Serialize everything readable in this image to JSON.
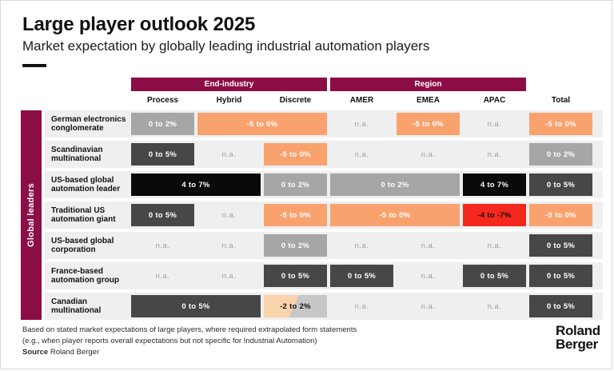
{
  "header": {
    "title": "Large player outlook 2025",
    "subtitle": "Market expectation by globally leading industrial automation players"
  },
  "table": {
    "sidebar_label": "Global leaders",
    "na_text": "n.a.",
    "group_headers": [
      {
        "label": "End-industry",
        "start": 1,
        "span": 3
      },
      {
        "label": "Region",
        "start": 4,
        "span": 3
      }
    ],
    "columns": [
      "Process",
      "Hybrid",
      "Discrete",
      "AMER",
      "EMEA",
      "APAC",
      "Total"
    ],
    "rows": [
      {
        "label": "German electronics conglomerate",
        "cells": [
          {
            "value": "0 to 2%",
            "style": "gray",
            "span": 1
          },
          {
            "value": "-5 to 0%",
            "style": "orange",
            "span": 2
          },
          {
            "value": "n.a.",
            "style": "na",
            "span": 1
          },
          {
            "value": "-5 to 0%",
            "style": "orange",
            "span": 1
          },
          {
            "value": "n.a.",
            "style": "na",
            "span": 1
          },
          {
            "value": "-5 to 0%",
            "style": "orange",
            "span": 1
          }
        ]
      },
      {
        "label": "Scandinavian multinational",
        "cells": [
          {
            "value": "0 to 5%",
            "style": "darkgray",
            "span": 1
          },
          {
            "value": "n.a.",
            "style": "na",
            "span": 1
          },
          {
            "value": "-5 to 0%",
            "style": "orange",
            "span": 1
          },
          {
            "value": "n.a.",
            "style": "na",
            "span": 1
          },
          {
            "value": "n.a.",
            "style": "na",
            "span": 1
          },
          {
            "value": "n.a.",
            "style": "na",
            "span": 1
          },
          {
            "value": "0 to 2%",
            "style": "gray",
            "span": 1
          }
        ]
      },
      {
        "label": "US-based global automation leader",
        "cells": [
          {
            "value": "4 to 7%",
            "style": "black",
            "span": 2
          },
          {
            "value": "0 to 2%",
            "style": "gray",
            "span": 1
          },
          {
            "value": "0 to 2%",
            "style": "gray",
            "span": 2
          },
          {
            "value": "4 to 7%",
            "style": "black",
            "span": 1
          },
          {
            "value": "0 to 5%",
            "style": "darkgray",
            "span": 1
          }
        ]
      },
      {
        "label": "Traditional US automation giant",
        "cells": [
          {
            "value": "0 to 5%",
            "style": "darkgray",
            "span": 1
          },
          {
            "value": "n.a.",
            "style": "na",
            "span": 1
          },
          {
            "value": "-5 to 0%",
            "style": "orange",
            "span": 1
          },
          {
            "value": "-5 to 0%",
            "style": "orange",
            "span": 2
          },
          {
            "value": "-4 to -7%",
            "style": "red",
            "span": 1
          },
          {
            "value": "-5 to 0%",
            "style": "orange",
            "span": 1
          }
        ]
      },
      {
        "label": "US-based global corporation",
        "cells": [
          {
            "value": "n.a.",
            "style": "na",
            "span": 1
          },
          {
            "value": "n.a.",
            "style": "na",
            "span": 1
          },
          {
            "value": "0 to 2%",
            "style": "gray",
            "span": 1
          },
          {
            "value": "n.a.",
            "style": "na",
            "span": 1
          },
          {
            "value": "n.a.",
            "style": "na",
            "span": 1
          },
          {
            "value": "n.a.",
            "style": "na",
            "span": 1
          },
          {
            "value": "0 to 5%",
            "style": "darkgray",
            "span": 1
          }
        ]
      },
      {
        "label": "France-based automation group",
        "cells": [
          {
            "value": "n.a.",
            "style": "na",
            "span": 1
          },
          {
            "value": "n.a.",
            "style": "na",
            "span": 1
          },
          {
            "value": "0 to 5%",
            "style": "darkgray",
            "span": 1
          },
          {
            "value": "0 to 5%",
            "style": "darkgray",
            "span": 1
          },
          {
            "value": "n.a.",
            "style": "na",
            "span": 1
          },
          {
            "value": "0 to 5%",
            "style": "darkgray",
            "span": 1
          },
          {
            "value": "0 to 5%",
            "style": "darkgray",
            "span": 1
          }
        ]
      },
      {
        "label": "Canadian multinational",
        "cells": [
          {
            "value": "0 to 5%",
            "style": "darkgray",
            "span": 2
          },
          {
            "value": "-2 to 2%",
            "style": "split",
            "span": 1
          },
          {
            "value": "n.a.",
            "style": "na",
            "span": 1
          },
          {
            "value": "n.a.",
            "style": "na",
            "span": 1
          },
          {
            "value": "n.a.",
            "style": "na",
            "span": 1
          },
          {
            "value": "0 to 5%",
            "style": "darkgray",
            "span": 1
          }
        ]
      }
    ]
  },
  "footer": {
    "footnote_line1": "Based on stated market expectations of large players, where required extrapolated form statements",
    "footnote_line2": "(e.g., when player reports overall expectations but not specific for Industrial Automation)",
    "source_label": "Source",
    "source_value": "Roland Berger",
    "logo_line1": "Roland",
    "logo_line2": "Berger"
  },
  "colors": {
    "maroon": "#8C0D45",
    "black": "#0A0A0A",
    "darkgray": "#474747",
    "gray": "#A6A6A6",
    "orange": "#F9A26E",
    "red": "#F5281E",
    "peach": "#FAD4AC",
    "lightgray": "#C7C7C7",
    "band": "#EFEFEF",
    "na": "#9E9E9E"
  },
  "chart_data": {
    "type": "heatmap",
    "title": "Large player outlook 2025",
    "subtitle": "Market expectation by globally leading industrial automation players",
    "row_group_label": "Global leaders",
    "column_groups": [
      {
        "label": "End-industry",
        "columns": [
          "Process",
          "Hybrid",
          "Discrete"
        ]
      },
      {
        "label": "Region",
        "columns": [
          "AMER",
          "EMEA",
          "APAC"
        ]
      },
      {
        "label": "",
        "columns": [
          "Total"
        ]
      }
    ],
    "columns": [
      "Process",
      "Hybrid",
      "Discrete",
      "AMER",
      "EMEA",
      "APAC",
      "Total"
    ],
    "rows": [
      {
        "player": "German electronics conglomerate",
        "values": [
          "0 to 2%",
          "-5 to 0%",
          "-5 to 0%",
          "n.a.",
          "-5 to 0%",
          "n.a.",
          "-5 to 0%"
        ]
      },
      {
        "player": "Scandinavian multinational",
        "values": [
          "0 to 5%",
          "n.a.",
          "-5 to 0%",
          "n.a.",
          "n.a.",
          "n.a.",
          "0 to 2%"
        ]
      },
      {
        "player": "US-based global automation leader",
        "values": [
          "4 to 7%",
          "4 to 7%",
          "0 to 2%",
          "0 to 2%",
          "0 to 2%",
          "4 to 7%",
          "0 to 5%"
        ]
      },
      {
        "player": "Traditional US automation giant",
        "values": [
          "0 to 5%",
          "n.a.",
          "-5 to 0%",
          "-5 to 0%",
          "-5 to 0%",
          "-4 to -7%",
          "-5 to 0%"
        ]
      },
      {
        "player": "US-based global corporation",
        "values": [
          "n.a.",
          "n.a.",
          "0 to 2%",
          "n.a.",
          "n.a.",
          "n.a.",
          "0 to 5%"
        ]
      },
      {
        "player": "France-based automation group",
        "values": [
          "n.a.",
          "n.a.",
          "0 to 5%",
          "0 to 5%",
          "n.a.",
          "0 to 5%",
          "0 to 5%"
        ]
      },
      {
        "player": "Canadian multinational",
        "values": [
          "0 to 5%",
          "0 to 5%",
          "-2 to 2%",
          "n.a.",
          "n.a.",
          "n.a.",
          "0 to 5%"
        ]
      }
    ]
  }
}
